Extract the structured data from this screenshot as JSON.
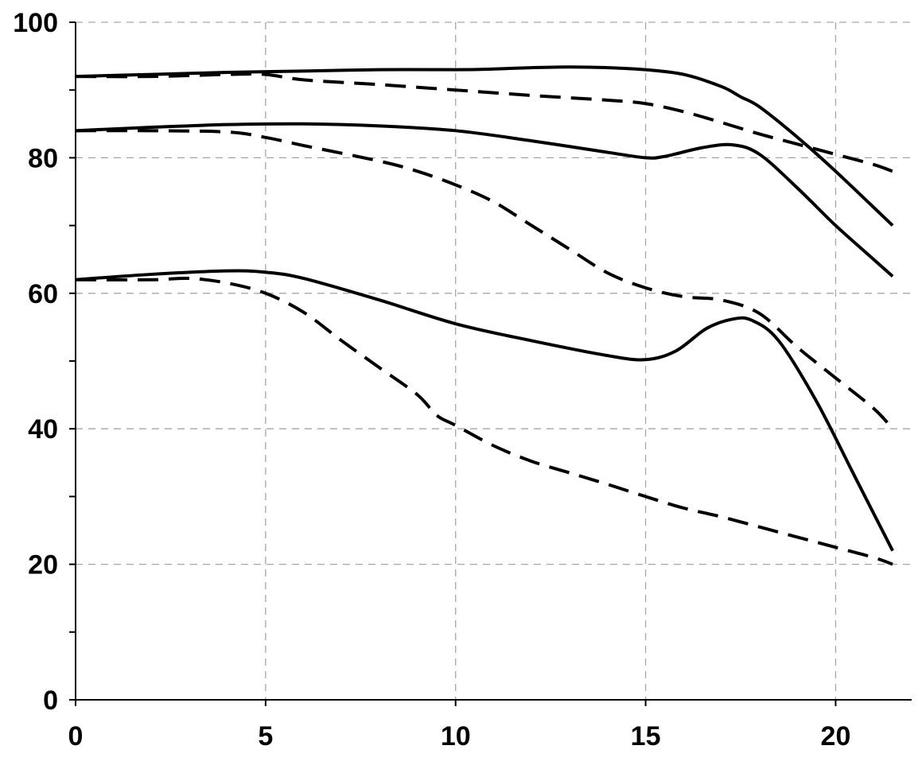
{
  "colors": {
    "background": "#ffffff",
    "axis": "#000000",
    "grid": "#a6a6a6",
    "line": "#000000"
  },
  "chart_data": {
    "type": "line",
    "title": "",
    "xlabel": "",
    "ylabel": "",
    "xlim": [
      0,
      22
    ],
    "ylim": [
      0,
      100
    ],
    "x_ticks": [
      0,
      5,
      10,
      15,
      20
    ],
    "y_ticks": [
      0,
      20,
      40,
      60,
      80,
      100
    ],
    "x_minor_ticks": [
      0,
      5,
      10,
      15,
      20
    ],
    "y_minor_ticks": [
      10,
      30,
      50,
      70,
      90
    ],
    "grid": true,
    "legend": "none",
    "series": [
      {
        "style": "solid",
        "x": [
          0,
          2,
          4,
          6,
          8,
          10,
          11,
          12,
          13,
          14,
          15,
          16,
          17,
          17.5,
          18,
          19,
          20,
          21.5
        ],
        "y": [
          92,
          92.3,
          92.6,
          92.8,
          93,
          93,
          93.1,
          93.3,
          93.4,
          93.3,
          93,
          92.3,
          90.5,
          89,
          87.5,
          83,
          78,
          70
        ]
      },
      {
        "style": "dashed",
        "x": [
          0,
          2,
          4,
          5,
          6,
          8,
          10,
          12,
          14,
          15,
          16,
          17,
          18,
          19,
          20,
          21,
          21.5
        ],
        "y": [
          92,
          92,
          92.3,
          92.3,
          91.5,
          90.8,
          90,
          89.2,
          88.5,
          88,
          86.8,
          85.2,
          83.5,
          82,
          80.5,
          79,
          78
        ]
      },
      {
        "style": "solid",
        "x": [
          0,
          2,
          4,
          6,
          8,
          10,
          12,
          14,
          15,
          15.5,
          16.5,
          17.3,
          18,
          19,
          20,
          21,
          21.5
        ],
        "y": [
          84,
          84.5,
          84.9,
          85,
          84.7,
          84,
          82.5,
          80.8,
          80,
          80.2,
          81.5,
          81.9,
          80.5,
          75.5,
          70,
          65,
          62.5
        ]
      },
      {
        "style": "dashed",
        "x": [
          0,
          2,
          4,
          5,
          6,
          8,
          9,
          10,
          11,
          12,
          13,
          14,
          15,
          16,
          17,
          18,
          19,
          20,
          21,
          21.5
        ],
        "y": [
          84,
          84,
          83.8,
          83,
          81.8,
          79.5,
          78,
          76,
          73.5,
          70,
          66.5,
          63,
          60.8,
          59.5,
          59,
          57,
          52,
          47.5,
          43,
          40
        ]
      },
      {
        "style": "solid",
        "x": [
          0,
          2,
          4,
          5,
          6,
          8,
          10,
          12,
          14,
          15,
          15.8,
          16.6,
          17.3,
          17.8,
          18.5,
          19.5,
          20.5,
          21.5
        ],
        "y": [
          62,
          62.8,
          63.3,
          63.1,
          62.2,
          59,
          55.5,
          53,
          50.8,
          50.2,
          51.5,
          54.8,
          56.2,
          56,
          53,
          44,
          33,
          22
        ]
      },
      {
        "style": "dashed",
        "x": [
          0,
          2,
          3,
          4,
          5,
          6,
          7,
          8,
          9,
          9.5,
          10,
          11,
          12,
          13,
          14,
          15,
          16,
          17,
          18,
          19,
          20,
          21,
          21.5
        ],
        "y": [
          62,
          62,
          62.2,
          61.5,
          60,
          57.2,
          53,
          49,
          45,
          42,
          40.5,
          37.5,
          35.2,
          33.5,
          31.8,
          30,
          28.3,
          27,
          25.5,
          24,
          22.5,
          21,
          20
        ]
      }
    ]
  }
}
